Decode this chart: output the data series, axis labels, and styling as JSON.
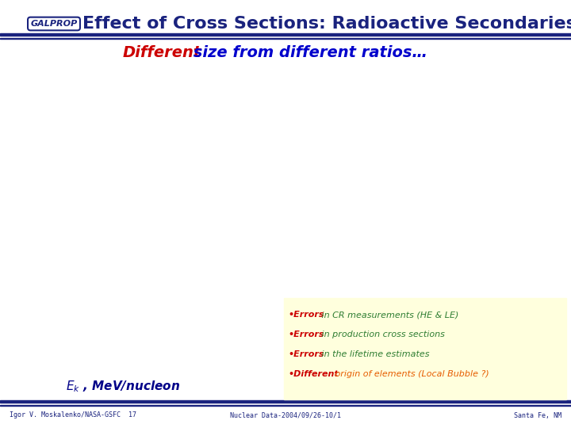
{
  "title": "Effect of Cross Sections: Radioactive Secondaries",
  "subtitle_red": "Different",
  "subtitle_rest": " size from different ratios…",
  "bg_color": "#ffffff",
  "header_color": "#1a237e",
  "footer_text": [
    "Igor V. Moskalenko/NASA-GSFC  17",
    "Nuclear Data-2004/09/26-10/1",
    "Santa Fe, NM"
  ],
  "bullet_items": [
    {
      "bold": "Errors",
      "bold_color": "#cc0000",
      "rest": " in CR measurements (HE & LE)",
      "rest_color": "#2e7d32"
    },
    {
      "bold": "Errors",
      "bold_color": "#cc0000",
      "rest": " in production cross sections",
      "rest_color": "#2e7d32"
    },
    {
      "bold": "Errors",
      "bold_color": "#cc0000",
      "rest": " in the lifetime estimates",
      "rest_color": "#2e7d32"
    },
    {
      "bold": "Different",
      "bold_color": "#cc0000",
      "rest": " origin of elements (Local Bubble ?)",
      "rest_color": "#e65c00"
    }
  ],
  "bullet_bg": "#ffffdd",
  "subtitle_red_color": "#cc0000",
  "subtitle_blue_color": "#0000cc",
  "divider_color": "#1a237e",
  "title_fontsize": 16,
  "teal_color": "#00bbbb",
  "arrow_color": "#dd44bb",
  "red_dot_color": "#dd0000",
  "green_dot_color": "#44cc44",
  "zhalo_color": "#cc0000",
  "ek_color": "#000088"
}
